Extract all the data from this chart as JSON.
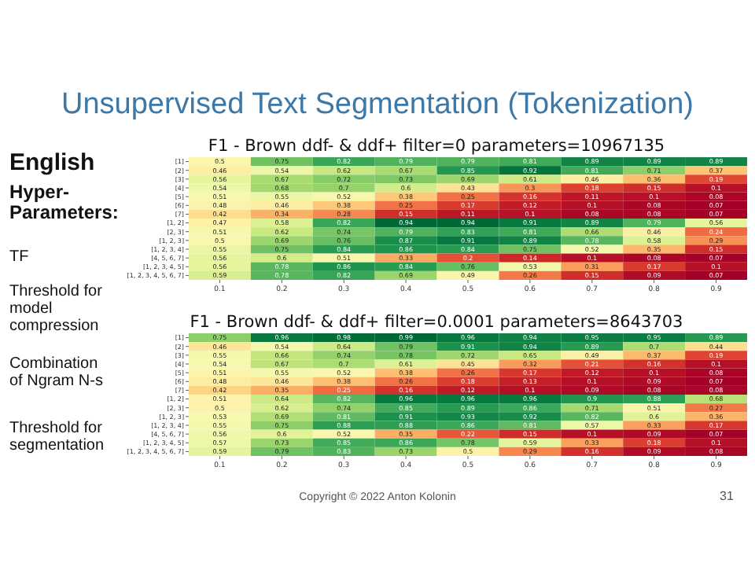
{
  "chart_data": [
    {
      "type": "other",
      "title": "Unsupervised Text Segmentation (Tokenization)",
      "annotations": [
        "English",
        "Hyper-Parameters:",
        "TF",
        "Threshold for model compression",
        "Combination of Ngram N-s",
        "Threshold for segmentation",
        "Copyright © 2022 Anton Kolonin",
        "31"
      ]
    },
    {
      "type": "heatmap",
      "title": "F1 - Brown ddf- & ddf+ filter=0 parameters=10967135",
      "data_labels": true,
      "categories": [
        "0.1",
        "0.2",
        "0.3",
        "0.4",
        "0.5",
        "0.6",
        "0.7",
        "0.8",
        "0.9"
      ],
      "y_categories": [
        "[1]",
        "[2]",
        "[3]",
        "[4]",
        "[5]",
        "[6]",
        "[7]",
        "[1, 2]",
        "[2, 3]",
        "[1, 2, 3]",
        "[1, 2, 3, 4]",
        "[4, 5, 6, 7]",
        "[1, 2, 3, 4, 5]",
        "[1, 2, 3, 4, 5, 6, 7]"
      ],
      "cells": [
        [
          0.5,
          0.75,
          0.82,
          0.79,
          0.79,
          0.81,
          0.89,
          0.89,
          0.89
        ],
        [
          0.46,
          0.54,
          0.62,
          0.67,
          0.85,
          0.92,
          0.81,
          0.71,
          0.37
        ],
        [
          0.56,
          0.67,
          0.72,
          0.73,
          0.69,
          0.61,
          0.46,
          0.36,
          0.19
        ],
        [
          0.54,
          0.68,
          0.7,
          0.6,
          0.43,
          0.3,
          0.18,
          0.15,
          0.1
        ],
        [
          0.51,
          0.55,
          0.52,
          0.38,
          0.25,
          0.16,
          0.11,
          0.1,
          0.08
        ],
        [
          0.48,
          0.46,
          0.38,
          0.25,
          0.17,
          0.12,
          0.1,
          0.08,
          0.07
        ],
        [
          0.42,
          0.34,
          0.28,
          0.15,
          0.11,
          0.1,
          0.08,
          0.08,
          0.07
        ],
        [
          0.47,
          0.58,
          0.82,
          0.94,
          0.94,
          0.91,
          0.89,
          0.79,
          0.56
        ],
        [
          0.51,
          0.62,
          0.74,
          0.79,
          0.83,
          0.81,
          0.66,
          0.46,
          0.24
        ],
        [
          0.5,
          0.69,
          0.76,
          0.87,
          0.91,
          0.89,
          0.78,
          0.58,
          0.29
        ],
        [
          0.55,
          0.75,
          0.84,
          0.86,
          0.84,
          0.75,
          0.52,
          0.35,
          0.15
        ],
        [
          0.56,
          0.6,
          0.51,
          0.33,
          0.2,
          0.14,
          0.1,
          0.08,
          0.07
        ],
        [
          0.56,
          0.78,
          0.86,
          0.84,
          0.76,
          0.53,
          0.31,
          0.17,
          0.1
        ],
        [
          0.59,
          0.78,
          0.82,
          0.69,
          0.49,
          0.26,
          0.15,
          0.09,
          0.07
        ]
      ]
    },
    {
      "type": "heatmap",
      "title": "F1 - Brown ddf- & ddf+ filter=0.0001 parameters=8643703",
      "data_labels": true,
      "categories": [
        "0.1",
        "0.2",
        "0.3",
        "0.4",
        "0.5",
        "0.6",
        "0.7",
        "0.8",
        "0.9"
      ],
      "y_categories": [
        "[1]",
        "[2]",
        "[3]",
        "[4]",
        "[5]",
        "[6]",
        "[7]",
        "[1, 2]",
        "[2, 3]",
        "[1, 2, 3]",
        "[1, 2, 3, 4]",
        "[4, 5, 6, 7]",
        "[1, 2, 3, 4, 5]",
        "[1, 2, 3, 4, 5, 6, 7]"
      ],
      "cells": [
        [
          0.75,
          0.96,
          0.98,
          0.99,
          0.96,
          0.94,
          0.95,
          0.95,
          0.89
        ],
        [
          0.46,
          0.54,
          0.64,
          0.79,
          0.91,
          0.94,
          0.89,
          0.7,
          0.44
        ],
        [
          0.55,
          0.66,
          0.74,
          0.78,
          0.72,
          0.65,
          0.49,
          0.37,
          0.19
        ],
        [
          0.54,
          0.67,
          0.7,
          0.61,
          0.45,
          0.32,
          0.21,
          0.16,
          0.1
        ],
        [
          0.51,
          0.55,
          0.52,
          0.38,
          0.26,
          0.17,
          0.12,
          0.1,
          0.08
        ],
        [
          0.48,
          0.46,
          0.38,
          0.26,
          0.18,
          0.13,
          0.1,
          0.09,
          0.07
        ],
        [
          0.42,
          0.35,
          0.25,
          0.16,
          0.12,
          0.1,
          0.09,
          0.08,
          0.08
        ],
        [
          0.51,
          0.64,
          0.82,
          0.96,
          0.96,
          0.96,
          0.9,
          0.88,
          0.68
        ],
        [
          0.5,
          0.62,
          0.74,
          0.85,
          0.89,
          0.86,
          0.71,
          0.51,
          0.27
        ],
        [
          0.53,
          0.69,
          0.81,
          0.91,
          0.93,
          0.92,
          0.82,
          0.6,
          0.36
        ],
        [
          0.55,
          0.75,
          0.88,
          0.88,
          0.86,
          0.81,
          0.57,
          0.33,
          0.17
        ],
        [
          0.56,
          0.6,
          0.52,
          0.35,
          0.22,
          0.15,
          0.1,
          0.09,
          0.07
        ],
        [
          0.57,
          0.73,
          0.85,
          0.86,
          0.78,
          0.59,
          0.33,
          0.18,
          0.1
        ],
        [
          0.59,
          0.79,
          0.83,
          0.73,
          0.5,
          0.29,
          0.16,
          0.09,
          0.08
        ]
      ]
    }
  ]
}
